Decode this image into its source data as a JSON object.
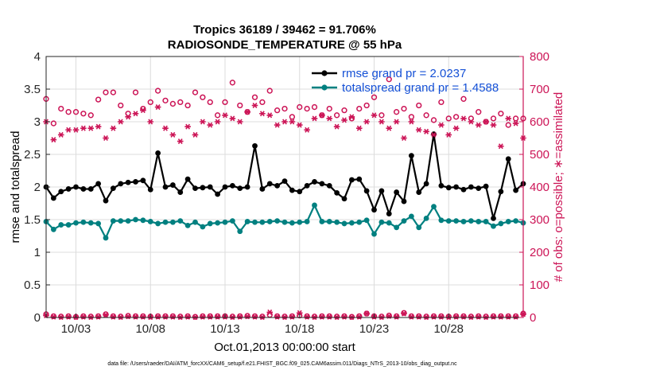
{
  "chart_data": {
    "type": "line",
    "title": "Tropics 36189 / 39462 = 91.706%",
    "subtitle": "RADIOSONDE_TEMPERATURE @ 55 hPa",
    "xlabel": "Oct.01,2013 00:00:00 start",
    "ylabel_left": "rmse and totalspread",
    "ylabel_right": "# of obs: o=possible; ∗=assimilated",
    "xlim": [
      1,
      33
    ],
    "ylim_left": [
      0,
      4
    ],
    "ylim_right": [
      0,
      800
    ],
    "x_ticks": [
      3,
      8,
      13,
      18,
      23,
      28
    ],
    "x_tick_labels": [
      "10/03",
      "10/08",
      "10/13",
      "10/18",
      "10/23",
      "10/28"
    ],
    "y_ticks_left": [
      "0",
      "0.5",
      "1",
      "1.5",
      "2",
      "2.5",
      "3",
      "3.5",
      "4"
    ],
    "y_ticks_right": [
      "0",
      "100",
      "200",
      "300",
      "400",
      "500",
      "600",
      "700",
      "800"
    ],
    "grid": true,
    "legend_position": "top-right",
    "colors": {
      "rmse": "#000000",
      "spread": "#008080",
      "obs": "#cc1456",
      "legend_text": "#1450d6"
    },
    "x": [
      1,
      1.5,
      2,
      2.5,
      3,
      3.5,
      4,
      4.5,
      5,
      5.5,
      6,
      6.5,
      7,
      7.5,
      8,
      8.5,
      9,
      9.5,
      10,
      10.5,
      11,
      11.5,
      12,
      12.5,
      13,
      13.5,
      14,
      14.5,
      15,
      15.5,
      16,
      16.5,
      17,
      17.5,
      18,
      18.5,
      19,
      19.5,
      20,
      20.5,
      21,
      21.5,
      22,
      22.5,
      23,
      23.5,
      24,
      24.5,
      25,
      25.5,
      26,
      26.5,
      27,
      27.5,
      28,
      28.5,
      29,
      29.5,
      30,
      30.5,
      31,
      31.5,
      32,
      32.5,
      33
    ],
    "series": [
      {
        "name": "rmse grand pr = 2.0237",
        "axis": "left",
        "marker": "dot-line",
        "values": [
          2.0,
          1.83,
          1.93,
          1.97,
          2.0,
          1.97,
          1.97,
          2.05,
          1.79,
          1.98,
          2.05,
          2.07,
          2.08,
          2.1,
          1.96,
          2.52,
          2.0,
          2.03,
          1.92,
          2.12,
          1.98,
          1.99,
          2.0,
          1.89,
          2.0,
          2.02,
          1.98,
          2.0,
          2.63,
          1.97,
          2.05,
          2.02,
          2.09,
          1.95,
          1.93,
          2.02,
          2.08,
          2.05,
          2.02,
          1.91,
          1.82,
          2.11,
          2.12,
          1.94,
          1.65,
          1.94,
          1.59,
          1.92,
          1.78,
          2.48,
          1.92,
          2.05,
          2.81,
          2.02,
          1.99,
          2.0,
          1.96,
          2.0,
          1.98,
          2.01,
          1.52,
          1.93,
          2.43,
          1.95,
          2.05
        ]
      },
      {
        "name": "totalspread grand pr = 1.4588",
        "axis": "left",
        "marker": "dot-line",
        "values": [
          1.47,
          1.35,
          1.42,
          1.42,
          1.45,
          1.46,
          1.45,
          1.44,
          1.22,
          1.48,
          1.48,
          1.48,
          1.5,
          1.49,
          1.47,
          1.44,
          1.46,
          1.46,
          1.48,
          1.41,
          1.46,
          1.39,
          1.44,
          1.45,
          1.46,
          1.48,
          1.32,
          1.47,
          1.46,
          1.46,
          1.47,
          1.48,
          1.46,
          1.45,
          1.46,
          1.47,
          1.72,
          1.47,
          1.47,
          1.46,
          1.44,
          1.45,
          1.46,
          1.49,
          1.28,
          1.46,
          1.45,
          1.38,
          1.48,
          1.55,
          1.38,
          1.52,
          1.7,
          1.49,
          1.48,
          1.48,
          1.47,
          1.48,
          1.47,
          1.47,
          1.4,
          1.44,
          1.47,
          1.48,
          1.45
        ]
      },
      {
        "name": "possible",
        "axis": "right",
        "marker": "circle",
        "values": [
          670,
          595,
          640,
          630,
          630,
          625,
          620,
          668,
          690,
          690,
          650,
          625,
          690,
          640,
          660,
          695,
          665,
          655,
          660,
          650,
          690,
          675,
          660,
          620,
          660,
          720,
          650,
          630,
          675,
          660,
          695,
          635,
          640,
          615,
          645,
          640,
          645,
          620,
          640,
          620,
          635,
          610,
          640,
          650,
          675,
          620,
          730,
          630,
          640,
          615,
          650,
          620,
          605,
          660,
          610,
          615,
          670,
          610,
          630,
          600,
          610,
          625,
          590,
          610,
          610
        ]
      },
      {
        "name": "assimilated",
        "axis": "right",
        "marker": "asterisk",
        "values": [
          600,
          545,
          560,
          575,
          575,
          580,
          580,
          585,
          550,
          580,
          600,
          615,
          625,
          635,
          600,
          645,
          580,
          560,
          540,
          585,
          560,
          600,
          590,
          600,
          620,
          610,
          600,
          630,
          650,
          625,
          620,
          590,
          600,
          600,
          590,
          575,
          610,
          620,
          610,
          585,
          605,
          615,
          580,
          600,
          620,
          600,
          580,
          600,
          550,
          600,
          575,
          570,
          560,
          590,
          560,
          580,
          610,
          600,
          590,
          600,
          590,
          525,
          610,
          595,
          550
        ]
      },
      {
        "name": "possible-bottom",
        "axis": "right",
        "marker": "circle",
        "values": [
          10,
          4,
          3,
          4,
          2,
          4,
          3,
          4,
          10,
          4,
          3,
          5,
          4,
          4,
          3,
          4,
          4,
          4,
          3,
          4,
          2,
          4,
          4,
          4,
          4,
          3,
          4,
          5,
          4,
          3,
          8,
          4,
          3,
          4,
          6,
          4,
          3,
          4,
          4,
          3,
          4,
          2,
          4,
          12,
          4,
          3,
          6,
          4,
          14,
          4,
          4,
          3,
          4,
          4,
          3,
          4,
          4,
          3,
          4,
          3,
          4,
          4,
          4,
          4,
          12
        ]
      },
      {
        "name": "assimilated-bottom",
        "axis": "right",
        "marker": "asterisk",
        "values": [
          6,
          2,
          1,
          2,
          1,
          2,
          1,
          2,
          8,
          2,
          1,
          3,
          2,
          2,
          1,
          2,
          2,
          2,
          1,
          2,
          1,
          2,
          2,
          2,
          2,
          1,
          2,
          3,
          2,
          1,
          16,
          2,
          1,
          2,
          14,
          2,
          1,
          2,
          2,
          1,
          2,
          1,
          2,
          12,
          2,
          1,
          4,
          2,
          12,
          2,
          2,
          1,
          2,
          2,
          1,
          2,
          2,
          1,
          2,
          1,
          2,
          2,
          2,
          2,
          10
        ]
      }
    ],
    "legend": [
      {
        "label": "rmse grand pr = 2.0237",
        "series": "rmse"
      },
      {
        "label": "totalspread grand pr = 1.4588",
        "series": "spread"
      }
    ]
  },
  "footer": "data file: /Users/raeder/DAI/ATM_forcXX/CAM6_setup/f.e21.FHIST_BGC.f09_025.CAM6assim.011/Diags_NTrS_2013-10/obs_diag_output.nc"
}
